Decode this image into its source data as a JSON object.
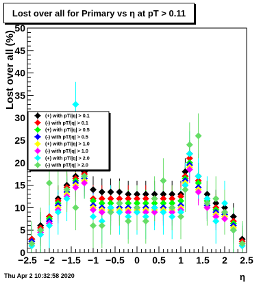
{
  "footer": "Thu Apr  2 10:32:58 2020",
  "chart_data": {
    "type": "scatter",
    "title": "Lost over all for Primary vs   η at pT > 0.11",
    "xlabel": "η",
    "ylabel": "Lost over all (%)",
    "xlim": [
      -2.5,
      2.5
    ],
    "ylim": [
      0,
      50
    ],
    "x_ticks": [
      "−2.5",
      "−2",
      "−1.5",
      "−1",
      "−0.5",
      "0",
      "0.5",
      "1",
      "1.5",
      "2",
      "2.5"
    ],
    "y_ticks": [
      "0",
      "5",
      "10",
      "15",
      "20",
      "25",
      "30",
      "35",
      "40",
      "45",
      "50"
    ],
    "grid": false,
    "legend_position": "left-middle",
    "series": [
      {
        "name": "(+) with pT/|q| > 0.1",
        "color": "#000000",
        "x": [
          -2.4,
          -2.2,
          -2.0,
          -1.8,
          -1.6,
          -1.4,
          -1.2,
          -1.0,
          -0.8,
          -0.6,
          -0.4,
          -0.2,
          0.0,
          0.2,
          0.4,
          0.6,
          0.8,
          1.0,
          1.1,
          1.2,
          1.4,
          1.6,
          1.8,
          2.0,
          2.2,
          2.4
        ],
        "y": [
          3,
          6,
          8,
          12,
          15,
          17,
          18,
          14,
          13.5,
          13.5,
          13.5,
          13,
          13,
          13,
          13,
          13,
          13,
          13,
          18,
          22,
          17,
          13,
          11,
          10,
          8,
          3
        ]
      },
      {
        "name": "(-) with pT/|q| > 0.1",
        "color": "#ff0000",
        "x": [
          -2.4,
          -2.2,
          -2.0,
          -1.8,
          -1.6,
          -1.4,
          -1.2,
          -1.0,
          -0.8,
          -0.6,
          -0.4,
          -0.2,
          0.0,
          0.2,
          0.4,
          0.6,
          0.8,
          1.0,
          1.1,
          1.2,
          1.4,
          1.6,
          1.8,
          2.0,
          2.2,
          2.4
        ],
        "y": [
          3,
          5.5,
          8,
          11.5,
          14.5,
          16.5,
          17.5,
          12,
          12,
          12,
          12,
          12,
          12,
          12,
          12,
          12,
          12,
          12.5,
          17,
          21,
          16,
          12,
          10,
          9,
          7,
          2.5
        ]
      },
      {
        "name": "(+) with pT/|q| > 0.5",
        "color": "#00ff00",
        "x": [
          -2.4,
          -2.2,
          -2.0,
          -1.8,
          -1.6,
          -1.4,
          -1.2,
          -1.0,
          -0.8,
          -0.6,
          -0.4,
          -0.2,
          0.0,
          0.2,
          0.4,
          0.6,
          0.8,
          1.0,
          1.1,
          1.2,
          1.4,
          1.6,
          1.8,
          2.0,
          2.2,
          2.4
        ],
        "y": [
          2.5,
          5,
          7.5,
          11,
          14,
          16,
          17,
          11.5,
          11,
          11,
          11,
          11,
          11,
          11,
          11,
          11,
          11,
          11.5,
          16.5,
          20,
          15.5,
          11.5,
          9.5,
          8.5,
          6.5,
          2
        ]
      },
      {
        "name": "(-) with pT/|q| > 0.5",
        "color": "#0000ff",
        "x": [
          -2.4,
          -2.2,
          -2.0,
          -1.8,
          -1.6,
          -1.4,
          -1.2,
          -1.0,
          -0.8,
          -0.6,
          -0.4,
          -0.2,
          0.0,
          0.2,
          0.4,
          0.6,
          0.8,
          1.0,
          1.1,
          1.2,
          1.4,
          1.6,
          1.8,
          2.0,
          2.2,
          2.4
        ],
        "y": [
          2.5,
          5,
          7,
          10.5,
          13.5,
          15.5,
          16.5,
          10.5,
          10,
          10,
          10,
          10,
          10,
          10,
          10,
          10,
          10,
          10.5,
          16,
          19.5,
          14.5,
          10.5,
          9,
          8.5,
          6,
          2
        ]
      },
      {
        "name": "(+) with pT/|q| > 1.0",
        "color": "#ffff00",
        "x": [
          -2.4,
          -2.2,
          -2.0,
          -1.8,
          -1.6,
          -1.4,
          -1.2,
          -1.0,
          -0.8,
          -0.6,
          -0.4,
          -0.2,
          0.0,
          0.2,
          0.4,
          0.6,
          0.8,
          1.0,
          1.1,
          1.2,
          1.4,
          1.6,
          1.8,
          2.0,
          2.2,
          2.4
        ],
        "y": [
          2,
          4.5,
          6.5,
          10,
          13,
          15,
          16,
          10,
          9.5,
          9.5,
          9.5,
          9.5,
          9.5,
          9.5,
          9.5,
          9.5,
          9.5,
          10,
          15.5,
          19,
          14,
          10,
          8.5,
          8,
          5.5,
          2
        ]
      },
      {
        "name": "(-) with pT/|q| > 1.0",
        "color": "#ff00ff",
        "x": [
          -2.4,
          -2.2,
          -2.0,
          -1.8,
          -1.6,
          -1.4,
          -1.2,
          -1.0,
          -0.8,
          -0.6,
          -0.4,
          -0.2,
          0.0,
          0.2,
          0.4,
          0.6,
          0.8,
          1.0,
          1.1,
          1.2,
          1.4,
          1.6,
          1.8,
          2.0,
          2.2,
          2.4
        ],
        "y": [
          2,
          4.5,
          6.5,
          9.5,
          12.5,
          14.5,
          15.5,
          9.5,
          9,
          9,
          9,
          9,
          9,
          9,
          9,
          9,
          9,
          9.5,
          15,
          18.5,
          13.5,
          10,
          8,
          7.5,
          5,
          1.5
        ]
      },
      {
        "name": "(+) with pT/|q| > 2.0",
        "color": "#00ffff",
        "x": [
          -2.4,
          -2.2,
          -2.0,
          -1.8,
          -1.6,
          -1.4,
          -1.2,
          -1.0,
          -0.8,
          -0.6,
          -0.4,
          -0.2,
          0.0,
          0.2,
          0.4,
          0.6,
          0.8,
          1.0,
          1.1,
          1.2,
          1.4,
          1.6,
          1.8,
          2.0,
          2.2,
          2.4
        ],
        "y": [
          1.5,
          4,
          6,
          9,
          12,
          33,
          17,
          8,
          7,
          10,
          9,
          8,
          9,
          8,
          10,
          9,
          8,
          9,
          15,
          22,
          17,
          12,
          7,
          11,
          5,
          1.5
        ]
      },
      {
        "name": "(-) with pT/|q| > 2.0",
        "color": "#66dd66",
        "x": [
          -2.4,
          -2.2,
          -2.0,
          -1.8,
          -1.6,
          -1.4,
          -1.2,
          -1.0,
          -0.8,
          -0.6,
          -0.4,
          -0.2,
          0.0,
          0.2,
          0.4,
          0.6,
          0.8,
          1.0,
          1.1,
          1.2,
          1.4,
          1.6,
          1.8,
          2.0,
          2.2,
          2.4
        ],
        "y": [
          2,
          5,
          15.5,
          19,
          14,
          10,
          17,
          6,
          6,
          9,
          11,
          7,
          10,
          7,
          12,
          16,
          10,
          8,
          14,
          24,
          26,
          11,
          12,
          9,
          5,
          2
        ]
      }
    ]
  }
}
